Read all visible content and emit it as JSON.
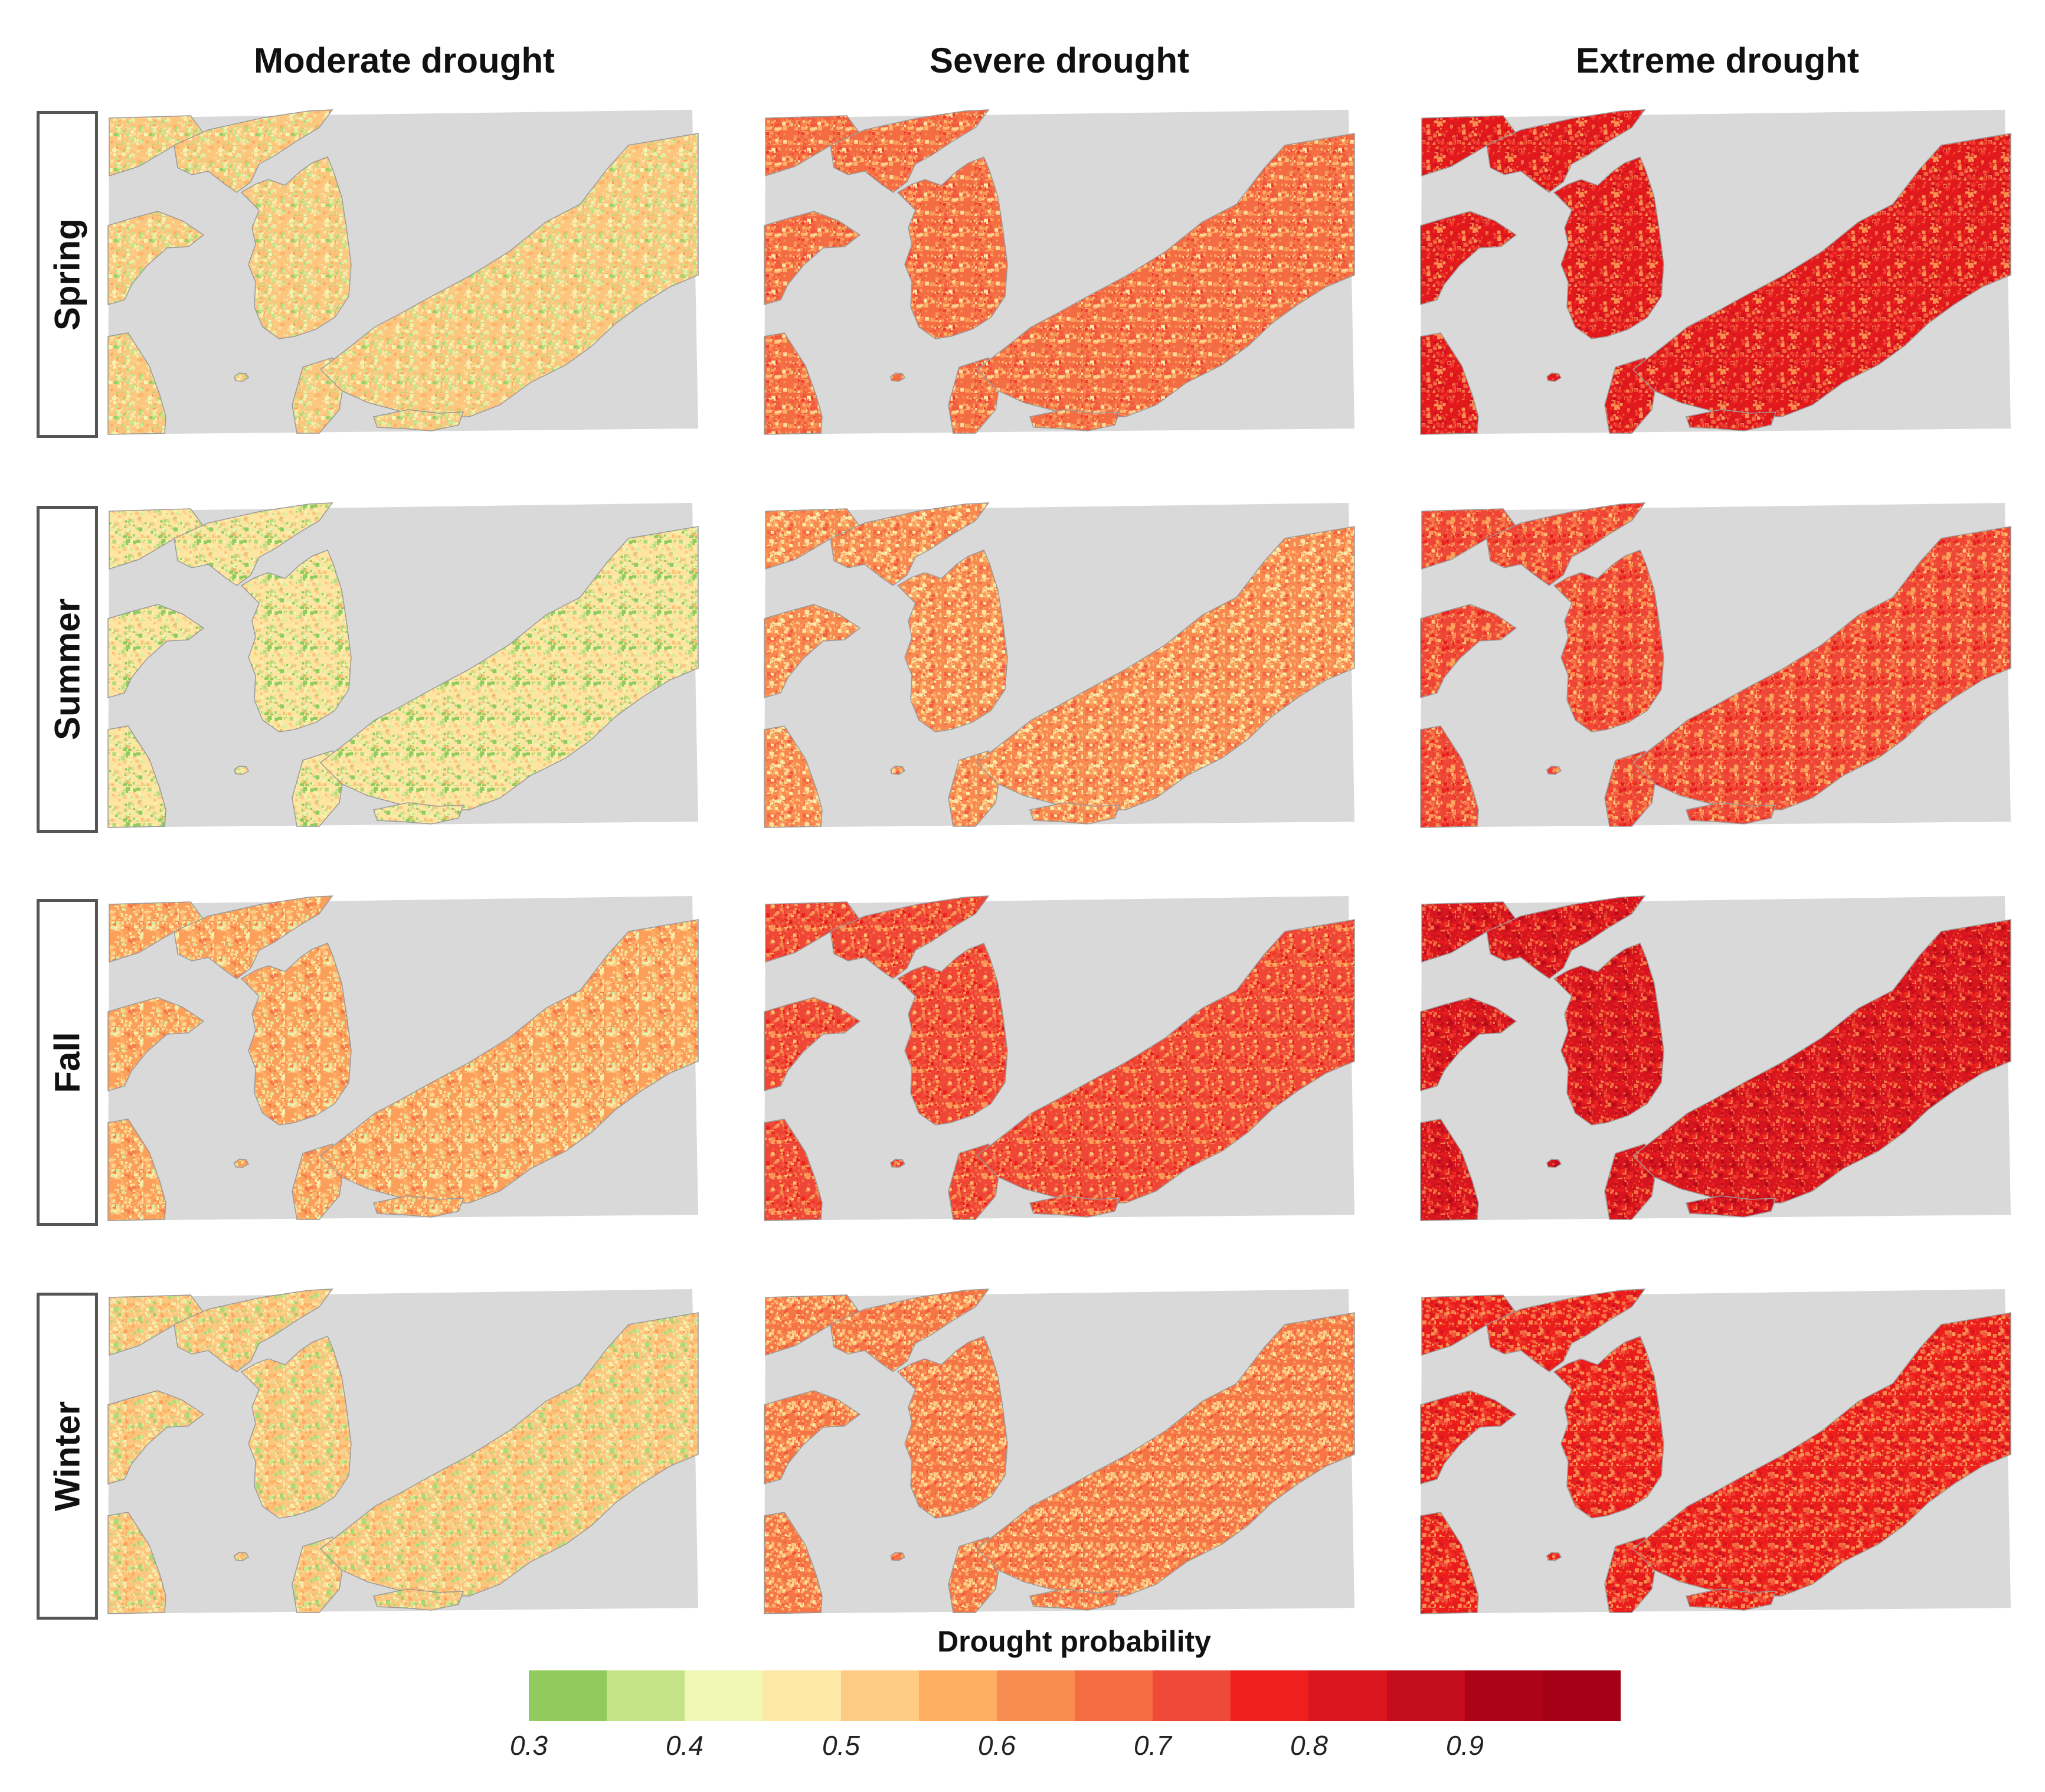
{
  "figure": {
    "columns": [
      "Moderate drought",
      "Severe drought",
      "Extreme drought"
    ],
    "rows": [
      "Spring",
      "Summer",
      "Fall",
      "Winter"
    ],
    "sea_color": "#d9d9d9",
    "land_outline_color": "#9a9a9a",
    "intensity": [
      [
        0.2,
        0.42,
        0.62
      ],
      [
        0.12,
        0.35,
        0.5
      ],
      [
        0.3,
        0.5,
        0.66
      ],
      [
        0.2,
        0.4,
        0.58
      ]
    ]
  },
  "legend": {
    "title": "Drought probability",
    "colors": [
      "#91cb5d",
      "#c3e386",
      "#f1f7b5",
      "#fee8a6",
      "#fdcb84",
      "#fdae61",
      "#f88d52",
      "#f46d43",
      "#ef4a39",
      "#ee1f1c",
      "#d9161e",
      "#c30d1c",
      "#ad0319",
      "#a50015"
    ],
    "ticks": [
      "0.3",
      "0.4",
      "0.5",
      "0.6",
      "0.7",
      "0.8",
      "0.9"
    ]
  }
}
